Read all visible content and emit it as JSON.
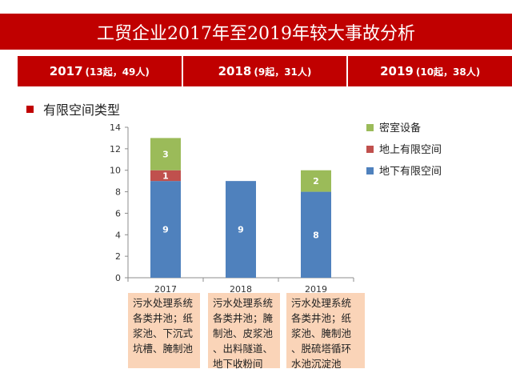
{
  "title": "工贸企业2017年至2019年较大事故分析",
  "years": [
    {
      "year": "2017",
      "detail": "(13起，49人)"
    },
    {
      "year": "2018",
      "detail": "(9起，31人)"
    },
    {
      "year": "2019",
      "detail": "(10起，38人)"
    }
  ],
  "section_title": "有限空间类型",
  "colors": {
    "underground": "#4f81bd",
    "above_ground": "#c0504d",
    "closed_equipment": "#9bbb59",
    "accent": "#c00000",
    "note_bg": "#fad4b8"
  },
  "chart_data": {
    "type": "bar",
    "stacked": true,
    "categories": [
      "2017",
      "2018",
      "2019"
    ],
    "series": [
      {
        "name": "地下有限空间",
        "values": [
          9,
          9,
          8
        ]
      },
      {
        "name": "地上有限空间",
        "values": [
          1,
          0,
          0
        ]
      },
      {
        "name": "密室设备",
        "values": [
          3,
          0,
          2
        ]
      }
    ],
    "ylim": [
      0,
      14
    ],
    "yticks": [
      0,
      2,
      4,
      6,
      8,
      10,
      12,
      14
    ],
    "legend": "right"
  },
  "notes": [
    "污水处理系统\n各类井池；纸\n浆池、下沉式\n坑槽、腌制池",
    "污水处理系统\n各类井池；腌\n制池、皮浆池\n、出料隧道、\n地下收粉间",
    "污水处理系统\n各类井池；纸\n浆池、腌制池\n、脱硫塔循环\n水池沉淀池"
  ]
}
